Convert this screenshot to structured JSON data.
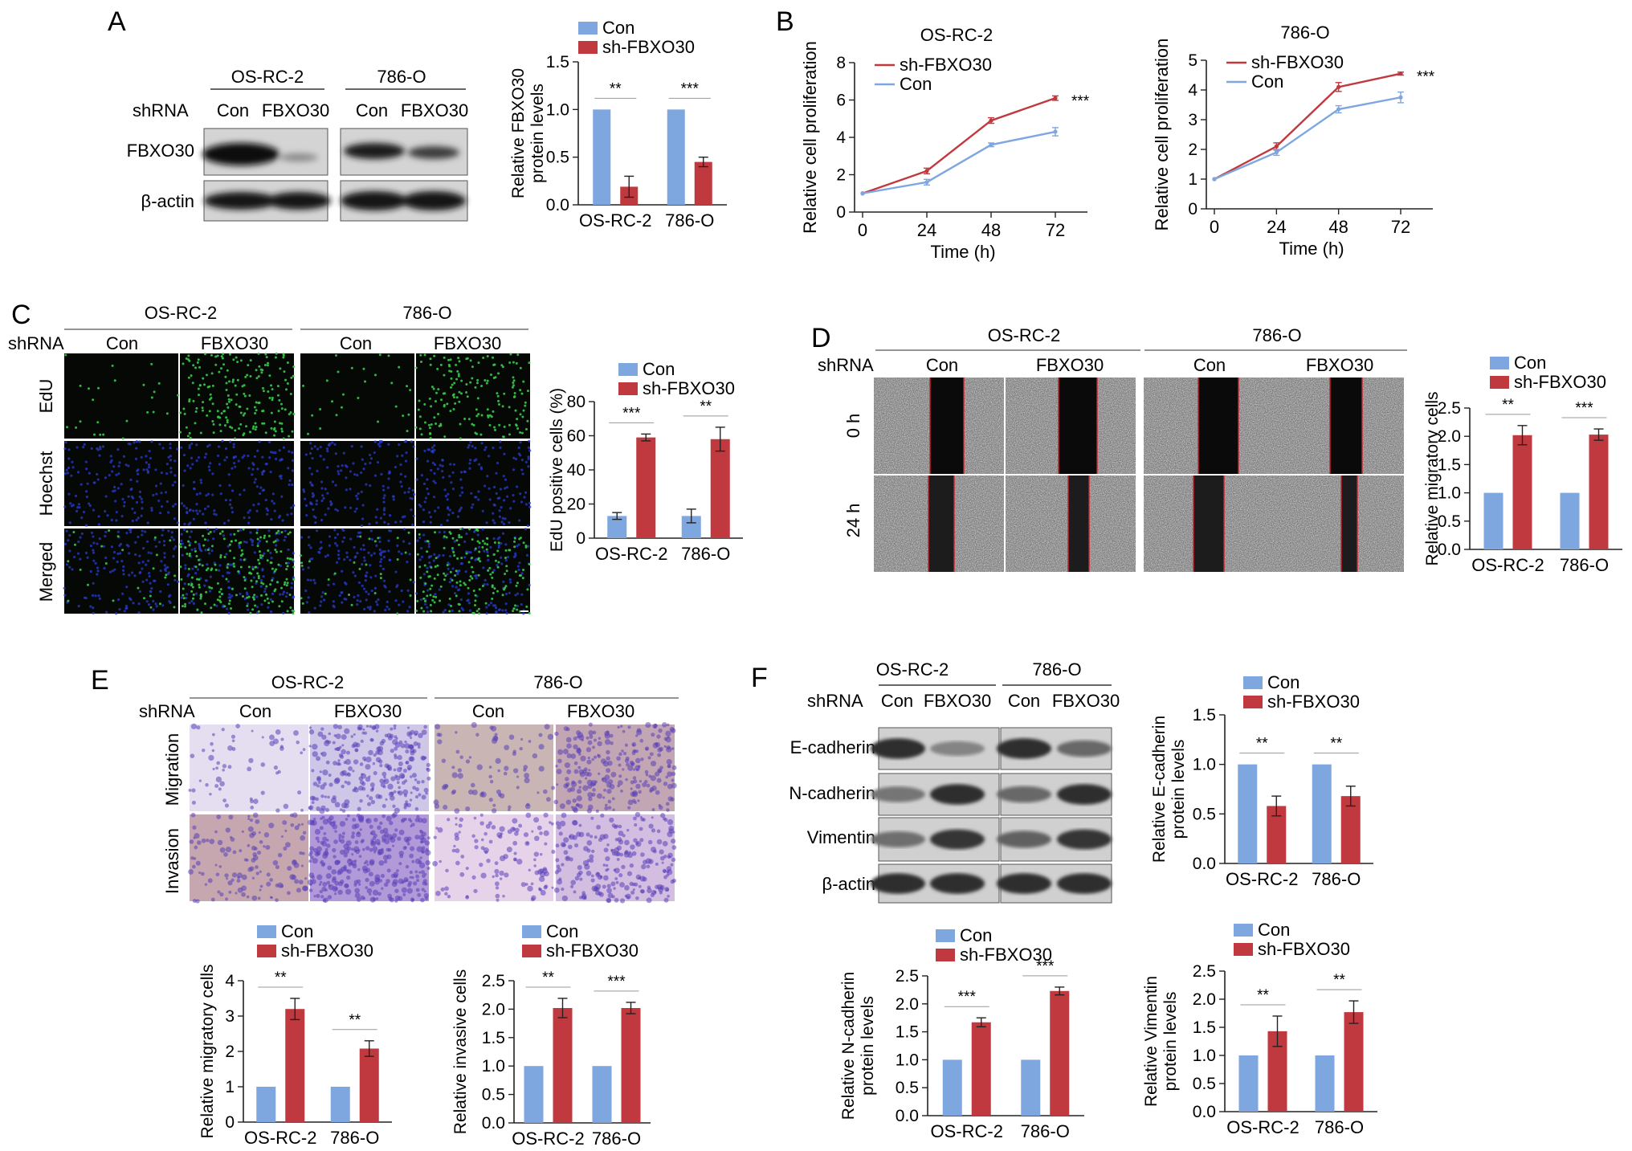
{
  "colors": {
    "con": "#7ea6df",
    "sh": "#c0393f",
    "blot_bg": "#cfcfcf",
    "micro_bg": "#050805",
    "edu_green": "#39c84a",
    "hoechst_blue": "#2a3bcf",
    "scratch_gray": "#9a9a9a",
    "scratch_red": "#d0202a",
    "stain_purple": "#5a3fb8"
  },
  "labels": {
    "con": "Con",
    "fbxo30": "FBXO30",
    "shrna": "shRNA",
    "sh_fbxo30": "sh-FBXO30",
    "osrc2": "OS-RC-2",
    "o786": "786-O",
    "fbxo30_band": "FBXO30",
    "bactin": "β-actin",
    "edu": "EdU",
    "hoechst": "Hoechst",
    "merged": "Merged",
    "h0": "0 h",
    "h24": "24 h",
    "migration": "Migration",
    "invasion": "Invasion",
    "ecad": "E-cadherin",
    "ncad": "N-cadherin",
    "vim": "Vimentin"
  },
  "panels": {
    "A": {
      "letter": "A"
    },
    "B": {
      "letter": "B"
    },
    "C": {
      "letter": "C"
    },
    "D": {
      "letter": "D"
    },
    "E": {
      "letter": "E"
    },
    "F": {
      "letter": "F"
    }
  },
  "chart_data": [
    {
      "id": "A_bar",
      "type": "bar",
      "ylabel": "Relative FBXO30 protein levels",
      "categories": [
        "OS-RC-2",
        "786-O"
      ],
      "ylim": [
        0,
        1.5
      ],
      "yticks": [
        0,
        0.5,
        1.0,
        1.5
      ],
      "yticklabels": [
        "0.0",
        "0.5",
        "1.0",
        "1.5"
      ],
      "series": [
        {
          "name": "Con",
          "values": [
            1.0,
            1.0
          ],
          "errors": [
            0,
            0
          ]
        },
        {
          "name": "sh-FBXO30",
          "values": [
            0.19,
            0.45
          ],
          "errors": [
            0.11,
            0.05
          ]
        }
      ],
      "significance": [
        "**",
        "***"
      ],
      "legend": "top"
    },
    {
      "id": "B_osrc2",
      "type": "line",
      "title": "OS-RC-2",
      "xlabel": "Time (h)",
      "ylabel": "Relative cell proliferation",
      "x": [
        0,
        24,
        48,
        72
      ],
      "ylim": [
        0,
        8
      ],
      "yticks": [
        0,
        2,
        4,
        6,
        8
      ],
      "series": [
        {
          "name": "sh-FBXO30",
          "values": [
            1.0,
            2.2,
            4.9,
            6.1
          ],
          "errors": [
            0,
            0.15,
            0.15,
            0.12
          ]
        },
        {
          "name": "Con",
          "values": [
            1.0,
            1.6,
            3.6,
            4.3
          ],
          "errors": [
            0,
            0.15,
            0.1,
            0.22
          ]
        }
      ],
      "significance": [
        "***"
      ],
      "legend": "top-left"
    },
    {
      "id": "B_786o",
      "type": "line",
      "title": "786-O",
      "xlabel": "Time (h)",
      "ylabel": "Relative cell proliferation",
      "x": [
        0,
        24,
        48,
        72
      ],
      "ylim": [
        0,
        5
      ],
      "yticks": [
        0,
        1,
        2,
        3,
        4,
        5
      ],
      "series": [
        {
          "name": "sh-FBXO30",
          "values": [
            1.0,
            2.1,
            4.1,
            4.55
          ],
          "errors": [
            0,
            0.12,
            0.15,
            0.05
          ]
        },
        {
          "name": "Con",
          "values": [
            1.0,
            1.9,
            3.35,
            3.75
          ],
          "errors": [
            0,
            0.1,
            0.12,
            0.18
          ]
        }
      ],
      "significance": [
        "***"
      ],
      "legend": "top-left"
    },
    {
      "id": "C_bar",
      "type": "bar",
      "ylabel": "EdU positive cells (%)",
      "categories": [
        "OS-RC-2",
        "786-O"
      ],
      "ylim": [
        0,
        80
      ],
      "yticks": [
        0,
        20,
        40,
        60,
        80
      ],
      "yticklabels": [
        "0",
        "20",
        "40",
        "60",
        "80"
      ],
      "series": [
        {
          "name": "Con",
          "values": [
            13,
            13
          ],
          "errors": [
            2,
            4
          ]
        },
        {
          "name": "sh-FBXO30",
          "values": [
            59,
            58
          ],
          "errors": [
            2,
            7
          ]
        }
      ],
      "significance": [
        "***",
        "**"
      ],
      "legend": "top"
    },
    {
      "id": "D_bar",
      "type": "bar",
      "ylabel": "Relative migratory cells",
      "categories": [
        "OS-RC-2",
        "786-O"
      ],
      "ylim": [
        0,
        2.5
      ],
      "yticks": [
        0,
        0.5,
        1.0,
        1.5,
        2.0,
        2.5
      ],
      "yticklabels": [
        "0.0",
        "0.5",
        "1.0",
        "1.5",
        "2.0",
        "2.5"
      ],
      "series": [
        {
          "name": "Con",
          "values": [
            1.0,
            1.0
          ],
          "errors": [
            0,
            0
          ]
        },
        {
          "name": "sh-FBXO30",
          "values": [
            2.02,
            2.03
          ],
          "errors": [
            0.17,
            0.1
          ]
        }
      ],
      "significance": [
        "**",
        "***"
      ],
      "legend": "top"
    },
    {
      "id": "E_mig",
      "type": "bar",
      "ylabel": "Relative migratory cells",
      "categories": [
        "OS-RC-2",
        "786-O"
      ],
      "ylim": [
        0,
        4
      ],
      "yticks": [
        0,
        1,
        2,
        3,
        4
      ],
      "yticklabels": [
        "0",
        "1",
        "2",
        "3",
        "4"
      ],
      "series": [
        {
          "name": "Con",
          "values": [
            1.0,
            1.0
          ],
          "errors": [
            0,
            0
          ]
        },
        {
          "name": "sh-FBXO30",
          "values": [
            3.2,
            2.08
          ],
          "errors": [
            0.3,
            0.22
          ]
        }
      ],
      "significance": [
        "**",
        "**"
      ],
      "legend": "top"
    },
    {
      "id": "E_inv",
      "type": "bar",
      "ylabel": "Relative invasive cells",
      "categories": [
        "OS-RC-2",
        "786-O"
      ],
      "ylim": [
        0,
        2.5
      ],
      "yticks": [
        0,
        0.5,
        1.0,
        1.5,
        2.0,
        2.5
      ],
      "yticklabels": [
        "0.0",
        "0.5",
        "1.0",
        "1.5",
        "2.0",
        "2.5"
      ],
      "series": [
        {
          "name": "Con",
          "values": [
            1.0,
            1.0
          ],
          "errors": [
            0,
            0
          ]
        },
        {
          "name": "sh-FBXO30",
          "values": [
            2.02,
            2.02
          ],
          "errors": [
            0.17,
            0.1
          ]
        }
      ],
      "significance": [
        "**",
        "***"
      ],
      "legend": "top"
    },
    {
      "id": "F_ecad",
      "type": "bar",
      "ylabel": "Relative E-cadherin protein levels",
      "categories": [
        "OS-RC-2",
        "786-O"
      ],
      "ylim": [
        0,
        1.5
      ],
      "yticks": [
        0,
        0.5,
        1.0,
        1.5
      ],
      "yticklabels": [
        "0.0",
        "0.5",
        "1.0",
        "1.5"
      ],
      "series": [
        {
          "name": "Con",
          "values": [
            1.0,
            1.0
          ],
          "errors": [
            0,
            0
          ]
        },
        {
          "name": "sh-FBXO30",
          "values": [
            0.58,
            0.68
          ],
          "errors": [
            0.1,
            0.1
          ]
        }
      ],
      "significance": [
        "**",
        "**"
      ],
      "legend": "top"
    },
    {
      "id": "F_ncad",
      "type": "bar",
      "ylabel": "Relative N-cadherin protein levels",
      "categories": [
        "OS-RC-2",
        "786-O"
      ],
      "ylim": [
        0,
        2.5
      ],
      "yticks": [
        0,
        0.5,
        1.0,
        1.5,
        2.0,
        2.5
      ],
      "yticklabels": [
        "0.0",
        "0.5",
        "1.0",
        "1.5",
        "2.0",
        "2.5"
      ],
      "series": [
        {
          "name": "Con",
          "values": [
            1.0,
            1.0
          ],
          "errors": [
            0,
            0
          ]
        },
        {
          "name": "sh-FBXO30",
          "values": [
            1.67,
            2.23
          ],
          "errors": [
            0.08,
            0.07
          ]
        }
      ],
      "significance": [
        "***",
        "***"
      ],
      "legend": "top"
    },
    {
      "id": "F_vim",
      "type": "bar",
      "ylabel": "Relative Vimentin protein levels",
      "categories": [
        "OS-RC-2",
        "786-O"
      ],
      "ylim": [
        0,
        2.5
      ],
      "yticks": [
        0,
        0.5,
        1.0,
        1.5,
        2.0,
        2.5
      ],
      "yticklabels": [
        "0.0",
        "0.5",
        "1.0",
        "1.5",
        "2.0",
        "2.5"
      ],
      "series": [
        {
          "name": "Con",
          "values": [
            1.0,
            1.0
          ],
          "errors": [
            0,
            0
          ]
        },
        {
          "name": "sh-FBXO30",
          "values": [
            1.43,
            1.77
          ],
          "errors": [
            0.27,
            0.2
          ]
        }
      ],
      "significance": [
        "**",
        "**"
      ],
      "legend": "top"
    }
  ]
}
